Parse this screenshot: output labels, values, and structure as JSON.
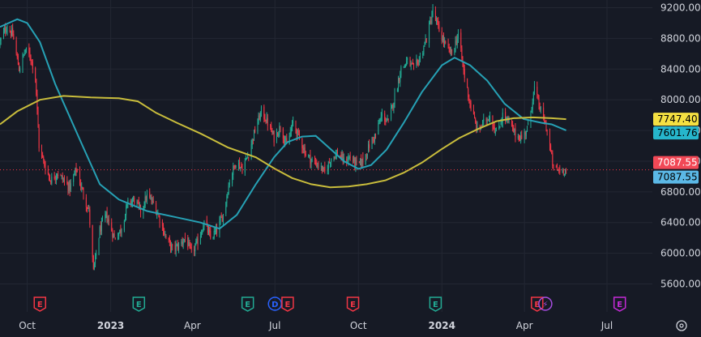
{
  "chart_data": {
    "type": "candlestick",
    "y_range": [
      5500,
      9300
    ],
    "y_ticks": [
      5600,
      6000,
      6400,
      6800,
      7200,
      7600,
      8000,
      8400,
      8800,
      9200
    ],
    "y_tick_labels": [
      "5600.00",
      "6000.00",
      "6400.00",
      "6800.00",
      "7200.00",
      "7600.00",
      "8000.00",
      "8400.00",
      "8800.00",
      "9200.00"
    ],
    "x_range": [
      "2022-09-01",
      "2024-08-20"
    ],
    "x_ticks": [
      {
        "date": "2022-10-01",
        "label": "Oct",
        "bold": false
      },
      {
        "date": "2023-01-01",
        "label": "2023",
        "bold": true
      },
      {
        "date": "2023-04-01",
        "label": "Apr",
        "bold": false
      },
      {
        "date": "2023-07-01",
        "label": "Jul",
        "bold": false
      },
      {
        "date": "2023-10-01",
        "label": "Oct",
        "bold": false
      },
      {
        "date": "2024-01-01",
        "label": "2024",
        "bold": true
      },
      {
        "date": "2024-04-01",
        "label": "Apr",
        "bold": false
      },
      {
        "date": "2024-07-01",
        "label": "Jul",
        "bold": false
      }
    ],
    "price_path": [
      [
        "2022-09-01",
        8750
      ],
      [
        "2022-09-08",
        8950
      ],
      [
        "2022-09-15",
        8850
      ],
      [
        "2022-09-22",
        8400
      ],
      [
        "2022-09-29",
        8650
      ],
      [
        "2022-10-05",
        8550
      ],
      [
        "2022-10-10",
        8300
      ],
      [
        "2022-10-14",
        7400
      ],
      [
        "2022-10-20",
        7150
      ],
      [
        "2022-10-27",
        6950
      ],
      [
        "2022-11-03",
        7050
      ],
      [
        "2022-11-10",
        6950
      ],
      [
        "2022-11-17",
        6850
      ],
      [
        "2022-11-24",
        7100
      ],
      [
        "2022-12-01",
        6800
      ],
      [
        "2022-12-08",
        6550
      ],
      [
        "2022-12-13",
        5760
      ],
      [
        "2022-12-20",
        6300
      ],
      [
        "2022-12-27",
        6500
      ],
      [
        "2023-01-05",
        6200
      ],
      [
        "2023-01-12",
        6300
      ],
      [
        "2023-01-20",
        6650
      ],
      [
        "2023-01-27",
        6700
      ],
      [
        "2023-02-03",
        6550
      ],
      [
        "2023-02-10",
        6750
      ],
      [
        "2023-02-17",
        6650
      ],
      [
        "2023-02-24",
        6450
      ],
      [
        "2023-03-03",
        6200
      ],
      [
        "2023-03-10",
        6050
      ],
      [
        "2023-03-17",
        6100
      ],
      [
        "2023-03-24",
        6200
      ],
      [
        "2023-03-31",
        6000
      ],
      [
        "2023-04-07",
        6150
      ],
      [
        "2023-04-14",
        6400
      ],
      [
        "2023-04-21",
        6200
      ],
      [
        "2023-04-28",
        6300
      ],
      [
        "2023-05-05",
        6500
      ],
      [
        "2023-05-12",
        6950
      ],
      [
        "2023-05-19",
        7200
      ],
      [
        "2023-05-26",
        7100
      ],
      [
        "2023-06-02",
        7300
      ],
      [
        "2023-06-09",
        7600
      ],
      [
        "2023-06-16",
        7850
      ],
      [
        "2023-06-23",
        7700
      ],
      [
        "2023-06-30",
        7500
      ],
      [
        "2023-07-07",
        7650
      ],
      [
        "2023-07-14",
        7400
      ],
      [
        "2023-07-21",
        7700
      ],
      [
        "2023-07-28",
        7500
      ],
      [
        "2023-08-04",
        7300
      ],
      [
        "2023-08-11",
        7200
      ],
      [
        "2023-08-18",
        7150
      ],
      [
        "2023-08-25",
        7050
      ],
      [
        "2023-09-01",
        7250
      ],
      [
        "2023-09-08",
        7300
      ],
      [
        "2023-09-15",
        7200
      ],
      [
        "2023-09-22",
        7250
      ],
      [
        "2023-09-29",
        7150
      ],
      [
        "2023-10-06",
        7200
      ],
      [
        "2023-10-13",
        7400
      ],
      [
        "2023-10-20",
        7550
      ],
      [
        "2023-10-27",
        7800
      ],
      [
        "2023-11-03",
        7700
      ],
      [
        "2023-11-10",
        8050
      ],
      [
        "2023-11-17",
        8400
      ],
      [
        "2023-11-24",
        8500
      ],
      [
        "2023-12-01",
        8400
      ],
      [
        "2023-12-08",
        8550
      ],
      [
        "2023-12-15",
        8800
      ],
      [
        "2023-12-22",
        9150
      ],
      [
        "2023-12-29",
        8900
      ],
      [
        "2024-01-05",
        8700
      ],
      [
        "2024-01-12",
        8600
      ],
      [
        "2024-01-19",
        8850
      ],
      [
        "2024-01-26",
        8300
      ],
      [
        "2024-02-02",
        7900
      ],
      [
        "2024-02-09",
        7600
      ],
      [
        "2024-02-16",
        7700
      ],
      [
        "2024-02-23",
        7800
      ],
      [
        "2024-03-01",
        7550
      ],
      [
        "2024-03-08",
        7800
      ],
      [
        "2024-03-15",
        7700
      ],
      [
        "2024-03-22",
        7550
      ],
      [
        "2024-03-29",
        7500
      ],
      [
        "2024-04-05",
        7650
      ],
      [
        "2024-04-12",
        8150
      ],
      [
        "2024-04-19",
        7850
      ],
      [
        "2024-04-26",
        7600
      ],
      [
        "2024-05-03",
        7100
      ],
      [
        "2024-05-10",
        7080
      ],
      [
        "2024-05-17",
        7090
      ]
    ],
    "series": [
      {
        "name": "",
        "color": "#26a1b5",
        "values": [
          [
            "2022-09-01",
            8950
          ],
          [
            "2022-09-20",
            9050
          ],
          [
            "2022-10-01",
            9000
          ],
          [
            "2022-10-15",
            8750
          ],
          [
            "2022-11-01",
            8200
          ],
          [
            "2022-12-01",
            7400
          ],
          [
            "2022-12-20",
            6900
          ],
          [
            "2023-01-10",
            6700
          ],
          [
            "2023-02-10",
            6550
          ],
          [
            "2023-03-10",
            6480
          ],
          [
            "2023-04-10",
            6400
          ],
          [
            "2023-05-01",
            6320
          ],
          [
            "2023-05-20",
            6500
          ],
          [
            "2023-06-10",
            6900
          ],
          [
            "2023-06-30",
            7250
          ],
          [
            "2023-07-15",
            7450
          ],
          [
            "2023-07-31",
            7520
          ],
          [
            "2023-08-15",
            7530
          ],
          [
            "2023-09-01",
            7350
          ],
          [
            "2023-09-15",
            7200
          ],
          [
            "2023-10-01",
            7100
          ],
          [
            "2023-10-15",
            7150
          ],
          [
            "2023-11-01",
            7350
          ],
          [
            "2023-11-20",
            7700
          ],
          [
            "2023-12-10",
            8100
          ],
          [
            "2024-01-01",
            8450
          ],
          [
            "2024-01-15",
            8550
          ],
          [
            "2024-02-01",
            8450
          ],
          [
            "2024-02-20",
            8250
          ],
          [
            "2024-03-10",
            7950
          ],
          [
            "2024-03-31",
            7750
          ],
          [
            "2024-04-20",
            7700
          ],
          [
            "2024-05-01",
            7680
          ],
          [
            "2024-05-17",
            7601.76
          ]
        ]
      },
      {
        "name": "",
        "color": "#c9bd3c",
        "values": [
          [
            "2022-09-01",
            7680
          ],
          [
            "2022-09-20",
            7850
          ],
          [
            "2022-10-15",
            8000
          ],
          [
            "2022-11-10",
            8050
          ],
          [
            "2022-12-10",
            8030
          ],
          [
            "2023-01-10",
            8020
          ],
          [
            "2023-01-31",
            7980
          ],
          [
            "2023-02-20",
            7830
          ],
          [
            "2023-03-15",
            7700
          ],
          [
            "2023-04-10",
            7560
          ],
          [
            "2023-05-10",
            7380
          ],
          [
            "2023-06-10",
            7250
          ],
          [
            "2023-07-01",
            7100
          ],
          [
            "2023-07-20",
            6980
          ],
          [
            "2023-08-10",
            6900
          ],
          [
            "2023-08-31",
            6860
          ],
          [
            "2023-09-20",
            6870
          ],
          [
            "2023-10-10",
            6900
          ],
          [
            "2023-10-31",
            6950
          ],
          [
            "2023-11-20",
            7050
          ],
          [
            "2023-12-10",
            7180
          ],
          [
            "2023-12-31",
            7350
          ],
          [
            "2024-01-20",
            7500
          ],
          [
            "2024-02-10",
            7620
          ],
          [
            "2024-03-01",
            7720
          ],
          [
            "2024-03-20",
            7760
          ],
          [
            "2024-04-10",
            7770
          ],
          [
            "2024-05-01",
            7760
          ],
          [
            "2024-05-17",
            7747.4
          ]
        ]
      }
    ],
    "current_price": 7087.55,
    "price_tags": [
      {
        "label": "7747.40",
        "value": 7747.4,
        "bg": "#f5e042",
        "fg": "#000000"
      },
      {
        "label": "7601.76",
        "value": 7601.76,
        "bg": "#26b6cc",
        "fg": "#000000"
      },
      {
        "label": "7087.55",
        "value": 7087.55,
        "bg": "#f24856",
        "fg": "#ffffff"
      },
      {
        "label": "7087.55",
        "value": 7087.55,
        "bg": "#5bb8e6",
        "fg": "#000000"
      }
    ],
    "events": [
      {
        "date": "2022-10-15",
        "text": "E",
        "color": "#f23645",
        "shape": "badge"
      },
      {
        "date": "2023-02-01",
        "text": "E",
        "color": "#22ab94",
        "shape": "badge"
      },
      {
        "date": "2023-06-01",
        "text": "E",
        "color": "#22ab94",
        "shape": "badge"
      },
      {
        "date": "2023-07-01",
        "text": "D",
        "color": "#2962ff",
        "shape": "circle"
      },
      {
        "date": "2023-07-15",
        "text": "E",
        "color": "#f23645",
        "shape": "badge"
      },
      {
        "date": "2023-09-25",
        "text": "E",
        "color": "#f23645",
        "shape": "badge"
      },
      {
        "date": "2023-12-25",
        "text": "E",
        "color": "#22ab94",
        "shape": "badge"
      },
      {
        "date": "2024-04-15",
        "text": "E",
        "color": "#f23645",
        "shape": "badge"
      },
      {
        "date": "2024-04-24",
        "text": "⚡",
        "color": "#a64de0",
        "shape": "circle"
      },
      {
        "date": "2024-07-15",
        "text": "E",
        "color": "#c42bd6",
        "shape": "badge"
      }
    ],
    "colors": {
      "background": "#161a25",
      "grid": "#232733",
      "up": "#22ab94",
      "down": "#f23645",
      "axis_text": "#d1d4dc"
    }
  },
  "controls": {
    "settings_icon": "gear-icon"
  }
}
